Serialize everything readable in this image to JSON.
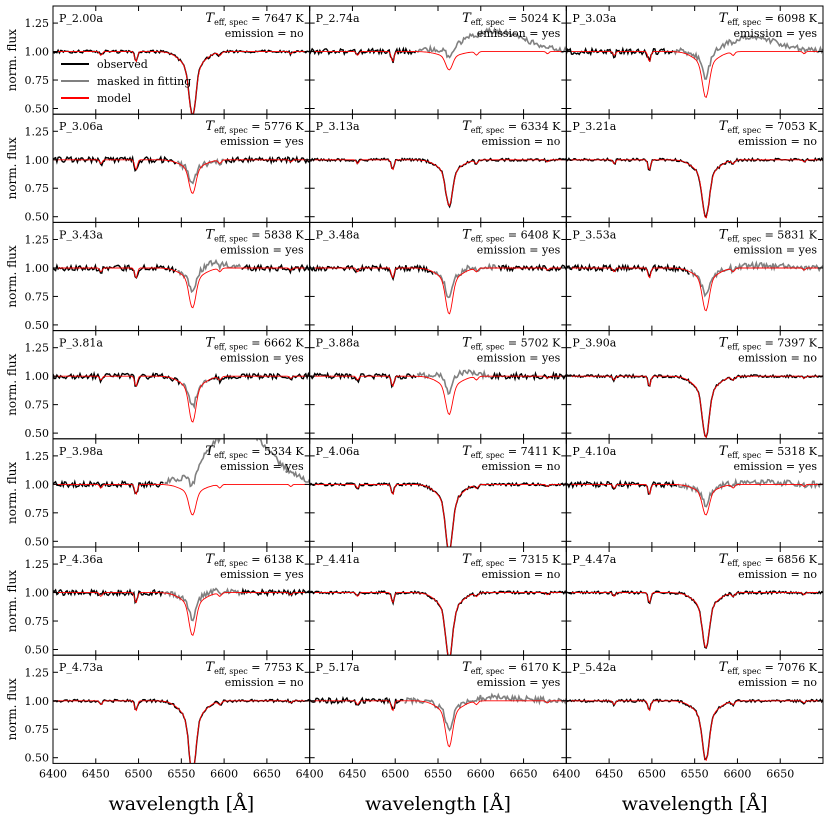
{
  "chart_data": {
    "type": "line",
    "layout": "grid 7 rows x 3 columns, shared axes",
    "xlabel": "wavelength [Å]",
    "ylabel": "norm. flux",
    "xlim": [
      6400,
      6700
    ],
    "ylim": [
      0.45,
      1.4
    ],
    "xticks": [
      "6400",
      "6450",
      "6500",
      "6550",
      "6600",
      "6650"
    ],
    "yticks": [
      "0.50",
      "0.75",
      "1.00",
      "1.25"
    ],
    "legend": {
      "placement": "upper-left of first panel",
      "entries": [
        {
          "label": "observed",
          "color": "#000000"
        },
        {
          "label": "masked in fitting",
          "color": "#808080"
        },
        {
          "label": "model",
          "color": "#ff0000"
        }
      ]
    },
    "teff_prefix": "T",
    "teff_sub": "eff, spec",
    "emission_prefix": "emission = ",
    "unit": "K",
    "panels": [
      {
        "name": "P_2.00a",
        "teff": "7647",
        "emission": "no",
        "depth": 0.42,
        "mask": [],
        "bump": 0
      },
      {
        "name": "P_2.74a",
        "teff": "5024",
        "emission": "yes",
        "depth": 0.12,
        "mask": [
          6525,
          6700
        ],
        "bump": 0.18
      },
      {
        "name": "P_3.03a",
        "teff": "6098",
        "emission": "yes",
        "depth": 0.3,
        "mask": [
          6525,
          6700
        ],
        "bump": 0.12
      },
      {
        "name": "P_3.06a",
        "teff": "5776",
        "emission": "yes",
        "depth": 0.22,
        "mask": [
          6545,
          6600
        ],
        "bump": 0.0
      },
      {
        "name": "P_3.13a",
        "teff": "6334",
        "emission": "no",
        "depth": 0.3,
        "mask": [],
        "bump": 0
      },
      {
        "name": "P_3.21a",
        "teff": "7053",
        "emission": "no",
        "depth": 0.38,
        "mask": [],
        "bump": 0
      },
      {
        "name": "P_3.43a",
        "teff": "5838",
        "emission": "yes",
        "depth": 0.26,
        "mask": [
          6545,
          6620
        ],
        "bump": 0.06
      },
      {
        "name": "P_3.48a",
        "teff": "6408",
        "emission": "yes",
        "depth": 0.3,
        "mask": [
          6545,
          6620
        ],
        "bump": 0.02
      },
      {
        "name": "P_3.53a",
        "teff": "5831",
        "emission": "yes",
        "depth": 0.28,
        "mask": [
          6545,
          6700
        ],
        "bump": 0.02
      },
      {
        "name": "P_3.81a",
        "teff": "6662",
        "emission": "yes",
        "depth": 0.3,
        "mask": [
          6550,
          6580
        ],
        "bump": 0
      },
      {
        "name": "P_3.88a",
        "teff": "5702",
        "emission": "yes",
        "depth": 0.25,
        "mask": [
          6525,
          6610
        ],
        "bump": 0.09
      },
      {
        "name": "P_3.90a",
        "teff": "7397",
        "emission": "no",
        "depth": 0.4,
        "mask": [],
        "bump": 0
      },
      {
        "name": "P_3.98a",
        "teff": "5334",
        "emission": "yes",
        "depth": 0.2,
        "mask": [
          6530,
          6700
        ],
        "bump": 0.5
      },
      {
        "name": "P_4.06a",
        "teff": "7411",
        "emission": "no",
        "depth": 0.44,
        "mask": [],
        "bump": 0
      },
      {
        "name": "P_4.10a",
        "teff": "5318",
        "emission": "yes",
        "depth": 0.2,
        "mask": [
          6530,
          6700
        ],
        "bump": 0.02
      },
      {
        "name": "P_4.36a",
        "teff": "6138",
        "emission": "yes",
        "depth": 0.28,
        "mask": [
          6530,
          6620
        ],
        "bump": 0.03
      },
      {
        "name": "P_4.41a",
        "teff": "7315",
        "emission": "no",
        "depth": 0.43,
        "mask": [],
        "bump": 0
      },
      {
        "name": "P_4.47a",
        "teff": "6856",
        "emission": "no",
        "depth": 0.36,
        "mask": [],
        "bump": 0
      },
      {
        "name": "P_4.73a",
        "teff": "7753",
        "emission": "no",
        "depth": 0.47,
        "mask": [],
        "bump": 0
      },
      {
        "name": "P_5.17a",
        "teff": "6170",
        "emission": "yes",
        "depth": 0.3,
        "mask": [
          6510,
          6700
        ],
        "bump": 0.03
      },
      {
        "name": "P_5.42a",
        "teff": "7076",
        "emission": "no",
        "depth": 0.39,
        "mask": [],
        "bump": 0
      }
    ]
  }
}
